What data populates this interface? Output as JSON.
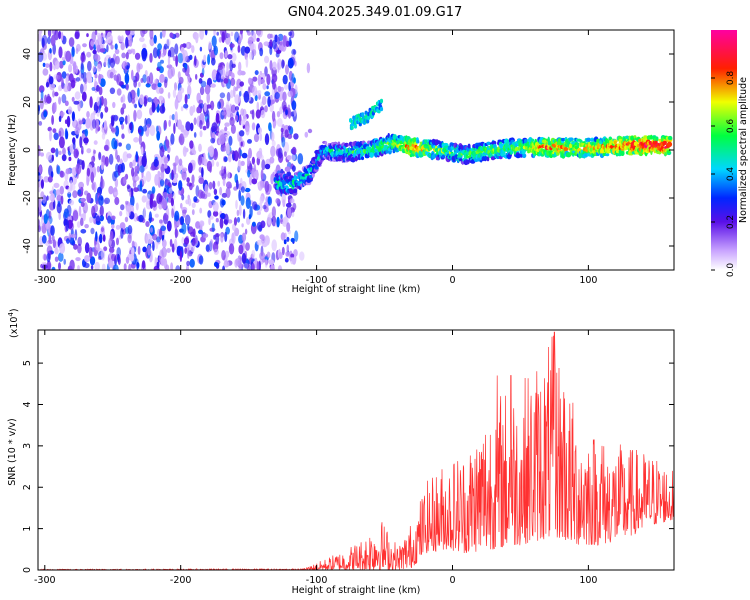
{
  "title": "GN04.2025.349.01.09.G17",
  "chart_data": [
    {
      "type": "heatmap",
      "xlabel": "Height of straight line (km)",
      "ylabel": "Frequency (Hz)",
      "xlim": [
        -305,
        163
      ],
      "ylim": [
        -50,
        50
      ],
      "x_ticks": [
        -300,
        -200,
        -100,
        0,
        100
      ],
      "x_tick_labels": [
        "-300",
        "-200",
        "-100",
        "0",
        "100"
      ],
      "y_ticks": [
        -40,
        -20,
        0,
        20,
        40
      ],
      "y_tick_labels": [
        "-40",
        "-20",
        "0",
        "20",
        "40"
      ],
      "colorbar": {
        "label": "Normalized spectral amplitude",
        "range": [
          0,
          1
        ],
        "ticks": [
          0,
          0.2,
          0.4,
          0.6,
          0.8
        ],
        "tick_labels": [
          "0.0",
          "0.2",
          "0.4",
          "0.6",
          "0.8"
        ],
        "colormap": "rainbow (white-violet-blue-cyan-green-yellow-red-magenta)"
      },
      "noise_region": {
        "x_range": [
          -305,
          -115
        ],
        "y_range": [
          -50,
          50
        ],
        "amplitude": [
          0.05,
          0.35
        ]
      },
      "signal_ridge": [
        {
          "x": -130,
          "y": -13,
          "amplitude": 0.5
        },
        {
          "x": -120,
          "y": -15,
          "amplitude": 0.5
        },
        {
          "x": -105,
          "y": -10,
          "amplitude": 0.45
        },
        {
          "x": -95,
          "y": 0,
          "amplitude": 0.45
        },
        {
          "x": -80,
          "y": -1,
          "amplitude": 0.5
        },
        {
          "x": -60,
          "y": 0,
          "amplitude": 0.55
        },
        {
          "x": -45,
          "y": 3,
          "amplitude": 0.6
        },
        {
          "x": -30,
          "y": 1,
          "amplitude": 0.8
        },
        {
          "x": -10,
          "y": 0,
          "amplitude": 0.6
        },
        {
          "x": 10,
          "y": -2,
          "amplitude": 0.55
        },
        {
          "x": 30,
          "y": 0,
          "amplitude": 0.6
        },
        {
          "x": 50,
          "y": 1,
          "amplitude": 0.6
        },
        {
          "x": 70,
          "y": 1,
          "amplitude": 0.8
        },
        {
          "x": 90,
          "y": 1,
          "amplitude": 0.7
        },
        {
          "x": 110,
          "y": 1,
          "amplitude": 0.75
        },
        {
          "x": 130,
          "y": 2,
          "amplitude": 0.85
        },
        {
          "x": 150,
          "y": 2,
          "amplitude": 0.9
        },
        {
          "x": 160,
          "y": 2,
          "amplitude": 0.9
        }
      ],
      "secondary_ridge": [
        {
          "x": -75,
          "y": 11
        },
        {
          "x": -62,
          "y": 14
        },
        {
          "x": -52,
          "y": 19
        }
      ]
    },
    {
      "type": "line",
      "xlabel": "Height of straight line (km)",
      "ylabel": "SNR (10 * v/v)",
      "scale_label": "(x10",
      "scale_exponent": "4",
      "xlim": [
        -305,
        163
      ],
      "ylim": [
        0,
        58000
      ],
      "x_ticks": [
        -300,
        -200,
        -100,
        0,
        100
      ],
      "x_tick_labels": [
        "-300",
        "-200",
        "-100",
        "0",
        "100"
      ],
      "y_ticks": [
        0,
        10000,
        20000,
        30000,
        40000,
        50000
      ],
      "y_tick_labels": [
        "0",
        "1",
        "2",
        "3",
        "4",
        "5"
      ],
      "series": [
        {
          "color": "#ff3030",
          "envelope": [
            {
              "x": -305,
              "low": 0,
              "high": 200
            },
            {
              "x": -110,
              "low": 0,
              "high": 300
            },
            {
              "x": -95,
              "low": 0,
              "high": 2500
            },
            {
              "x": -80,
              "low": 0,
              "high": 5000
            },
            {
              "x": -65,
              "low": 0,
              "high": 8000
            },
            {
              "x": -55,
              "low": 0,
              "high": 14000
            },
            {
              "x": -40,
              "low": 0,
              "high": 6000
            },
            {
              "x": -30,
              "low": 500,
              "high": 12000
            },
            {
              "x": -20,
              "low": 4000,
              "high": 21000
            },
            {
              "x": -5,
              "low": 5000,
              "high": 27000
            },
            {
              "x": 10,
              "low": 4000,
              "high": 30000
            },
            {
              "x": 30,
              "low": 5000,
              "high": 44000
            },
            {
              "x": 50,
              "low": 6000,
              "high": 46000
            },
            {
              "x": 75,
              "low": 8000,
              "high": 57500
            },
            {
              "x": 90,
              "low": 6000,
              "high": 40000
            },
            {
              "x": 110,
              "low": 6000,
              "high": 32000
            },
            {
              "x": 130,
              "low": 8000,
              "high": 30000
            },
            {
              "x": 150,
              "low": 11000,
              "high": 28000
            },
            {
              "x": 163,
              "low": 12000,
              "high": 24000
            }
          ],
          "peaks": [
            {
              "x": 33,
              "y": 47000
            },
            {
              "x": 43,
              "y": 47000
            },
            {
              "x": 75,
              "y": 57500
            },
            {
              "x": 82,
              "y": 43000
            },
            {
              "x": 110,
              "y": 30000
            }
          ]
        }
      ]
    }
  ]
}
